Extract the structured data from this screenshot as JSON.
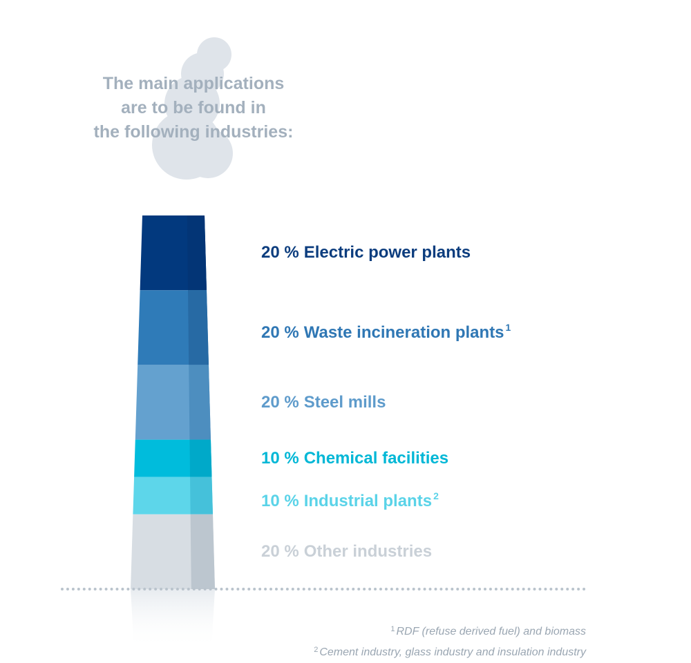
{
  "headline": {
    "line1": "The main applications",
    "line2": "are to be found in",
    "line3": "the following industries:"
  },
  "chart_data": {
    "type": "bar",
    "orientation": "stacked",
    "categories": [
      "Electric power plants",
      "Waste incineration plants",
      "Steel mills",
      "Chemical facilities",
      "Industrial plants",
      "Other industries"
    ],
    "values": [
      20,
      20,
      20,
      10,
      10,
      20
    ],
    "unit": "%",
    "title": "",
    "colors": [
      "#02397e",
      "#2f7bb8",
      "#64a1cf",
      "#00bcdc",
      "#5dd6ea",
      "#d7dde3"
    ],
    "shade_colors": [
      "#033576",
      "#276aa4",
      "#4d8ebf",
      "#00a9c9",
      "#45c1da",
      "#bcc6cf"
    ],
    "label_colors": [
      "#0c3d7e",
      "#2f77b4",
      "#5e9bcb",
      "#00b7d6",
      "#5ad3e8",
      "#c9d0d7"
    ],
    "labels": [
      {
        "percent": "20 %",
        "text": "Electric power plants",
        "note": ""
      },
      {
        "percent": "20 %",
        "text": "Waste incineration plants",
        "note": "1"
      },
      {
        "percent": "20 %",
        "text": "Steel mills",
        "note": ""
      },
      {
        "percent": "10 %",
        "text": "Chemical facilities",
        "note": ""
      },
      {
        "percent": "10 %",
        "text": "Industrial plants",
        "note": "2"
      },
      {
        "percent": "20 %",
        "text": "Other industries",
        "note": ""
      }
    ]
  },
  "footnotes": [
    {
      "mark": "1",
      "text": "RDF (refuse derived fuel) and biomass"
    },
    {
      "mark": "2",
      "text": "Cement industry, glass industry and insulation industry"
    }
  ]
}
